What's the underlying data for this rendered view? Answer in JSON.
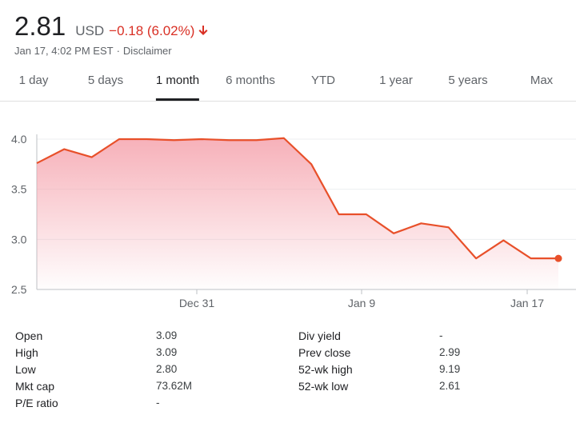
{
  "quote": {
    "price": "2.81",
    "currency": "USD",
    "change": "−0.18 (6.02%)",
    "arrow_icon": "arrow-down-icon",
    "timestamp": "Jan 17, 4:02 PM EST",
    "separator": "·",
    "disclaimer": "Disclaimer",
    "change_color": "#d93025"
  },
  "tabs": [
    {
      "label": "1 day"
    },
    {
      "label": "5 days"
    },
    {
      "label": "1 month",
      "active": true
    },
    {
      "label": "6 months"
    },
    {
      "label": "YTD"
    },
    {
      "label": "1 year"
    },
    {
      "label": "5 years"
    },
    {
      "label": "Max"
    }
  ],
  "chart_data": {
    "type": "area",
    "title": "",
    "xlabel": "",
    "ylabel": "",
    "ylim": [
      2.5,
      4.0
    ],
    "yticks": [
      "4.0",
      "3.5",
      "3.0",
      "2.5"
    ],
    "xticks": [
      "Dec 31",
      "Jan 9",
      "Jan 17"
    ],
    "grid": true,
    "line_color": "#e8502a",
    "fill_color": "#f5a3ad",
    "series": [
      {
        "values": [
          3.76,
          3.9,
          3.82,
          4.0,
          4.0,
          3.99,
          4.0,
          3.99,
          3.99,
          4.01,
          3.75,
          3.25,
          3.25,
          3.06,
          3.16,
          3.12,
          2.81,
          2.99,
          2.81,
          2.81
        ]
      }
    ]
  },
  "stats": {
    "left": [
      {
        "label": "Open",
        "value": "3.09"
      },
      {
        "label": "High",
        "value": "3.09"
      },
      {
        "label": "Low",
        "value": "2.80"
      },
      {
        "label": "Mkt cap",
        "value": "73.62M"
      },
      {
        "label": "P/E ratio",
        "value": "-"
      }
    ],
    "right": [
      {
        "label": "Div yield",
        "value": "-"
      },
      {
        "label": "Prev close",
        "value": "2.99"
      },
      {
        "label": "52-wk high",
        "value": "9.19"
      },
      {
        "label": "52-wk low",
        "value": "2.61"
      }
    ]
  }
}
